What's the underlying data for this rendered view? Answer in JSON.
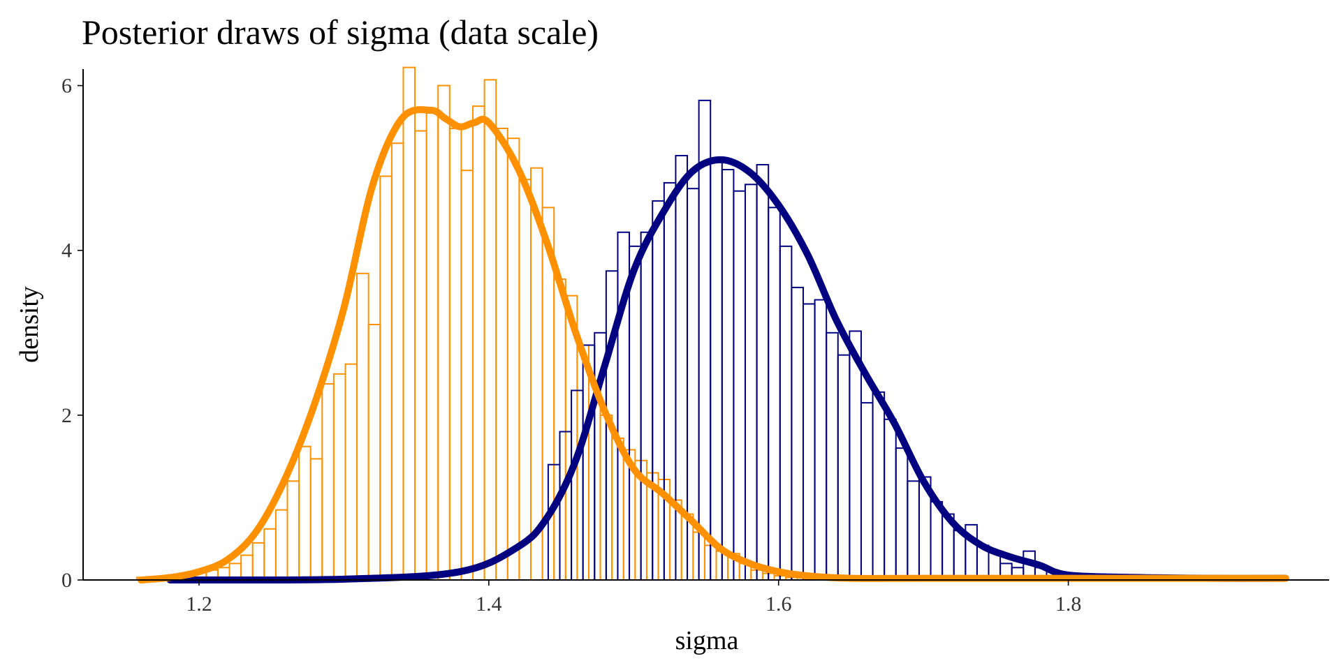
{
  "chart_data": {
    "type": "histogram+density",
    "title": "Posterior draws of sigma (data scale)",
    "xlabel": "sigma",
    "ylabel": "density",
    "xlim": [
      1.12,
      1.98
    ],
    "ylim": [
      0,
      6.2
    ],
    "x_ticks": [
      1.2,
      1.4,
      1.6,
      1.8
    ],
    "x_tick_labels": [
      "1.2",
      "1.4",
      "1.6",
      "1.8"
    ],
    "y_ticks": [
      0,
      2,
      4,
      6
    ],
    "y_tick_labels": [
      "0",
      "2",
      "4",
      "6"
    ],
    "grid": false,
    "legend": "none",
    "bin_width": 0.008,
    "series": [
      {
        "color": "#FF9000",
        "hist_bin_starts": [
          1.157,
          1.165,
          1.173,
          1.181,
          1.189,
          1.197,
          1.205,
          1.213,
          1.221,
          1.229,
          1.237,
          1.245,
          1.253,
          1.261,
          1.269,
          1.277,
          1.285,
          1.293,
          1.301,
          1.309,
          1.317,
          1.325,
          1.333,
          1.341,
          1.349,
          1.357,
          1.365,
          1.373,
          1.381,
          1.389,
          1.397,
          1.405,
          1.413,
          1.421,
          1.429,
          1.437,
          1.445,
          1.453,
          1.461,
          1.469,
          1.477,
          1.485,
          1.493,
          1.501,
          1.509,
          1.517,
          1.525,
          1.533,
          1.541,
          1.549,
          1.557,
          1.565,
          1.573,
          1.581,
          1.589,
          1.597,
          1.605
        ],
        "hist_density": [
          0.03,
          0.03,
          0.04,
          0.05,
          0.07,
          0.1,
          0.12,
          0.15,
          0.2,
          0.3,
          0.45,
          0.62,
          0.85,
          1.2,
          1.62,
          1.47,
          2.38,
          2.5,
          2.62,
          3.72,
          3.1,
          4.9,
          5.3,
          6.22,
          5.45,
          5.71,
          6.0,
          5.48,
          4.97,
          5.75,
          6.07,
          5.48,
          5.36,
          4.86,
          5.0,
          4.52,
          3.65,
          3.45,
          2.85,
          2.42,
          2.0,
          1.72,
          1.58,
          1.45,
          1.3,
          1.22,
          0.97,
          0.8,
          0.58,
          0.42,
          0.35,
          0.32,
          0.2,
          0.12,
          0.08,
          0.05,
          0.03
        ],
        "density_x": [
          1.16,
          1.18,
          1.2,
          1.22,
          1.24,
          1.26,
          1.28,
          1.3,
          1.32,
          1.34,
          1.36,
          1.37,
          1.38,
          1.39,
          1.4,
          1.42,
          1.44,
          1.46,
          1.48,
          1.5,
          1.52,
          1.54,
          1.56,
          1.58,
          1.6,
          1.62,
          1.65,
          1.7,
          1.8,
          1.95
        ],
        "density_y": [
          0.0,
          0.03,
          0.1,
          0.25,
          0.6,
          1.25,
          2.15,
          3.3,
          4.8,
          5.6,
          5.7,
          5.6,
          5.5,
          5.55,
          5.55,
          5.0,
          4.1,
          3.0,
          2.05,
          1.35,
          1.05,
          0.72,
          0.38,
          0.2,
          0.1,
          0.05,
          0.02,
          0.02,
          0.02,
          0.02
        ]
      },
      {
        "color": "#000080",
        "hist_bin_starts": [
          1.441,
          1.449,
          1.457,
          1.465,
          1.473,
          1.481,
          1.489,
          1.497,
          1.505,
          1.513,
          1.521,
          1.529,
          1.537,
          1.545,
          1.553,
          1.561,
          1.569,
          1.577,
          1.585,
          1.593,
          1.601,
          1.609,
          1.617,
          1.625,
          1.633,
          1.641,
          1.649,
          1.657,
          1.665,
          1.673,
          1.681,
          1.689,
          1.697,
          1.705,
          1.713,
          1.721,
          1.729,
          1.737,
          1.745,
          1.753,
          1.761,
          1.769,
          1.777,
          1.785,
          1.793,
          1.801,
          1.809,
          1.817,
          1.825,
          1.833,
          1.841,
          1.849,
          1.857,
          1.865,
          1.873,
          1.881,
          1.889,
          1.897,
          1.905,
          1.913,
          1.921,
          1.929,
          1.937
        ],
        "hist_density": [
          1.4,
          1.8,
          2.3,
          2.85,
          3.0,
          3.75,
          4.22,
          4.05,
          4.22,
          4.6,
          4.82,
          5.15,
          4.75,
          5.82,
          5.07,
          4.98,
          4.72,
          4.8,
          5.04,
          4.52,
          4.05,
          3.55,
          3.35,
          3.4,
          3.0,
          2.73,
          3.02,
          2.15,
          2.28,
          1.95,
          1.6,
          1.2,
          1.25,
          0.95,
          0.8,
          0.6,
          0.67,
          0.42,
          0.35,
          0.2,
          0.15,
          0.35,
          0.15,
          0.12,
          0.08,
          0.07,
          0.06,
          0.06,
          0.05,
          0.04,
          0.04,
          0.04,
          0.03,
          0.03,
          0.03,
          0.03,
          0.03,
          0.03,
          0.03,
          0.03,
          0.03,
          0.03,
          0.03
        ],
        "density_x": [
          1.18,
          1.3,
          1.38,
          1.42,
          1.44,
          1.46,
          1.48,
          1.5,
          1.52,
          1.54,
          1.56,
          1.58,
          1.6,
          1.62,
          1.64,
          1.66,
          1.68,
          1.7,
          1.72,
          1.74,
          1.76,
          1.78,
          1.8,
          1.85,
          1.9,
          1.95
        ],
        "density_y": [
          0.0,
          0.01,
          0.1,
          0.4,
          0.75,
          1.45,
          2.6,
          3.75,
          4.45,
          4.95,
          5.1,
          4.95,
          4.55,
          3.95,
          3.15,
          2.5,
          1.9,
          1.2,
          0.7,
          0.42,
          0.28,
          0.18,
          0.06,
          0.03,
          0.02,
          0.02
        ]
      }
    ]
  }
}
